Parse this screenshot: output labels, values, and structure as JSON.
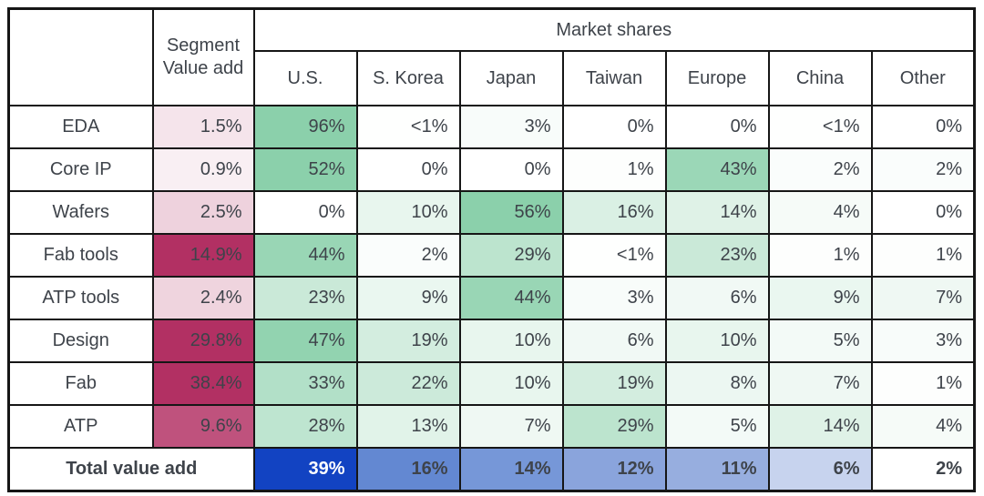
{
  "header": {
    "segment_line1": "Segment",
    "segment_line2": "Value add",
    "group": "Market shares"
  },
  "chart_data": {
    "type": "heatmap",
    "title": "Market shares",
    "columns": [
      "U.S.",
      "S. Korea",
      "Japan",
      "Taiwan",
      "Europe",
      "China",
      "Other"
    ],
    "rows": [
      "EDA",
      "Core IP",
      "Wafers",
      "Fab tools",
      "ATP tools",
      "Design",
      "Fab",
      "ATP"
    ],
    "segment_value_add_pct": [
      1.5,
      0.9,
      2.5,
      14.9,
      2.4,
      29.8,
      38.4,
      9.6
    ],
    "market_shares_pct": [
      [
        96,
        "<1",
        3,
        0,
        0,
        "<1",
        0
      ],
      [
        52,
        0,
        0,
        1,
        43,
        2,
        2
      ],
      [
        0,
        10,
        56,
        16,
        14,
        4,
        0
      ],
      [
        44,
        2,
        29,
        "<1",
        23,
        1,
        1
      ],
      [
        23,
        9,
        44,
        3,
        6,
        9,
        7
      ],
      [
        47,
        19,
        10,
        6,
        10,
        5,
        3
      ],
      [
        33,
        22,
        10,
        19,
        8,
        7,
        1
      ],
      [
        28,
        13,
        7,
        29,
        5,
        14,
        4
      ]
    ],
    "total_row": {
      "label": "Total value add",
      "values_pct": [
        39,
        16,
        14,
        12,
        11,
        6,
        2
      ]
    },
    "layout": {
      "grid": "bordered table",
      "value_suffix": "%",
      "heatmap_scales": "pink = segment value add, green = market shares, blue = total value add"
    }
  },
  "colors": {
    "text": "#3e434a",
    "text_on_dark_total": "#ffffff",
    "border": "#161616",
    "green_max": "#8bd0ab",
    "green_scale_cap": 50,
    "pink_max": "#b23063",
    "pink_scale_cap": 11.5,
    "total_bg": [
      "#1243c2",
      "#6388d2",
      "#7697d8",
      "#8aa4dc",
      "#97aedf",
      "#c7d3ee",
      "#ffffff"
    ]
  }
}
